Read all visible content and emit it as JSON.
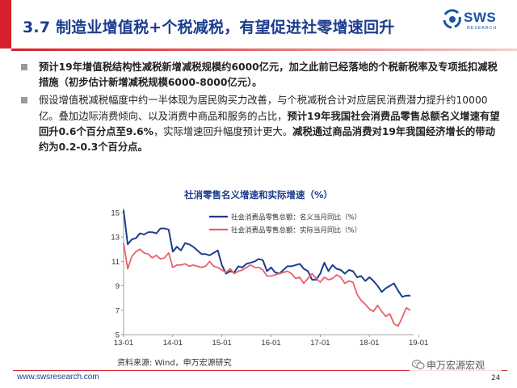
{
  "header": {
    "title": "3.7 制造业增值税+个税减税，有望促进社零增速回升",
    "logo_text": "SWS",
    "logo_sub": "RESEARCH",
    "brand_color": "#d7202b",
    "title_color": "#1b3d8e"
  },
  "bullets": [
    {
      "segments": [
        {
          "text": "预计19年增值税结构性减税新增减税规模约6000亿元，加之此前已经落地的个税新税率及专项抵扣减税措施（初步估计新增减税规模6000-8000亿元）。",
          "bold": true
        }
      ]
    },
    {
      "segments": [
        {
          "text": "假设增值税减税幅度中约一半体现为居民购买力改善，与个税减税合计对应居民消费潜力提升约10000亿。叠加边际消费倾向、以及消费中商品和服务的占比，",
          "bold": false
        },
        {
          "text": "预计19年我国社会消费品零售总额名义增速有望回升0.6个百分点至9.6%",
          "bold": true
        },
        {
          "text": "，实际增速回升幅度预计更大。",
          "bold": false
        },
        {
          "text": "减税通过商品消费对19年我国经济增长的带动约为0.2-0.3个百分点。",
          "bold": true
        }
      ]
    }
  ],
  "chart_data": {
    "type": "line",
    "title": "社消零售名义增速和实际增速（%）",
    "ylim": [
      5,
      15
    ],
    "yticks": [
      5,
      7,
      9,
      11,
      13,
      15
    ],
    "xticks": [
      "13-01",
      "14-01",
      "15-01",
      "16-01",
      "17-01",
      "18-01",
      "19-01"
    ],
    "grid": false,
    "legend_position": "top",
    "series": [
      {
        "name": "社会消费品零售总额：名义当月同比（%）",
        "color": "#1b3d8e",
        "values": [
          15.2,
          12.4,
          12.8,
          12.9,
          13.3,
          13.2,
          13.4,
          13.4,
          13.3,
          13.7,
          13.7,
          13.6,
          11.8,
          12.2,
          11.9,
          12.5,
          12.4,
          12.2,
          11.9,
          11.6,
          11.6,
          11.5,
          11.7,
          11.9,
          10.7,
          10.0,
          10.2,
          10.1,
          10.6,
          10.5,
          10.8,
          10.9,
          11.0,
          11.2,
          11.1,
          10.2,
          10.5,
          10.1,
          10.0,
          10.3,
          10.6,
          10.6,
          10.7,
          10.8,
          10.4,
          10.2,
          9.5,
          9.5,
          10.0,
          10.9,
          10.2,
          10.7,
          10.4,
          10.3,
          10.0,
          10.3,
          10.2,
          9.7,
          9.8,
          9.4,
          9.7,
          9.4,
          9.0,
          8.5,
          8.8,
          9.0,
          9.2,
          8.6,
          8.1,
          8.2,
          8.2
        ]
      },
      {
        "name": "社会消费品零售总额：实际当月同比（%）",
        "color": "#e9606a",
        "values": [
          12.5,
          10.4,
          11.4,
          11.8,
          12.0,
          11.7,
          11.6,
          11.3,
          11.5,
          11.2,
          11.3,
          11.7,
          10.5,
          10.7,
          10.7,
          10.8,
          10.6,
          10.7,
          10.6,
          10.5,
          10.6,
          11.0,
          10.6,
          10.5,
          10.3,
          10.1,
          10.4,
          10.0,
          10.2,
          10.3,
          10.5,
          10.7,
          10.5,
          10.5,
          10.3,
          9.8,
          9.8,
          9.9,
          10.0,
          10.1,
          10.2,
          10.0,
          9.6,
          9.7,
          9.2,
          9.6,
          10.0,
          9.6,
          9.3,
          9.7,
          9.5,
          9.6,
          9.9,
          9.7,
          9.2,
          9.4,
          9.3,
          8.3,
          7.8,
          7.5,
          7.1,
          6.9,
          7.4,
          6.9,
          6.5,
          6.7,
          5.9,
          5.7,
          6.4,
          7.2,
          7.0
        ]
      }
    ]
  },
  "source": "资料来源: Wind，申万宏源研究",
  "footer": {
    "url": "www.swsresearch.com",
    "page": "24",
    "wechat": "申万宏源宏观"
  }
}
